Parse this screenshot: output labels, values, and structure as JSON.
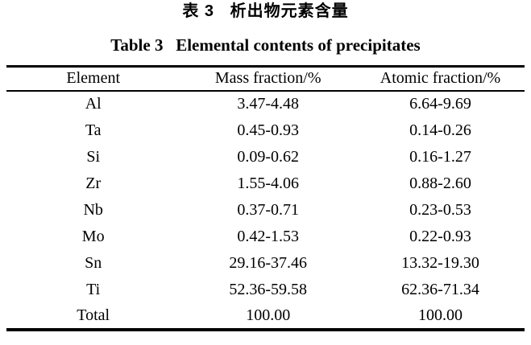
{
  "titles": {
    "chinese": "表 3   析出物元素含量",
    "english": "Table 3   Elemental contents of precipitates"
  },
  "table": {
    "headers": [
      "Element",
      "Mass fraction/%",
      "Atomic fraction/%"
    ],
    "rows": [
      [
        "Al",
        "3.47-4.48",
        "6.64-9.69"
      ],
      [
        "Ta",
        "0.45-0.93",
        "0.14-0.26"
      ],
      [
        "Si",
        "0.09-0.62",
        "0.16-1.27"
      ],
      [
        "Zr",
        "1.55-4.06",
        "0.88-2.60"
      ],
      [
        "Nb",
        "0.37-0.71",
        "0.23-0.53"
      ],
      [
        "Mo",
        "0.42-1.53",
        "0.22-0.93"
      ],
      [
        "Sn",
        "29.16-37.46",
        "13.32-19.30"
      ],
      [
        "Ti",
        "52.36-59.58",
        "62.36-71.34"
      ],
      [
        "Total",
        "100.00",
        "100.00"
      ]
    ]
  },
  "colors": {
    "text": "#000000",
    "background": "#ffffff",
    "rule": "#000000"
  }
}
